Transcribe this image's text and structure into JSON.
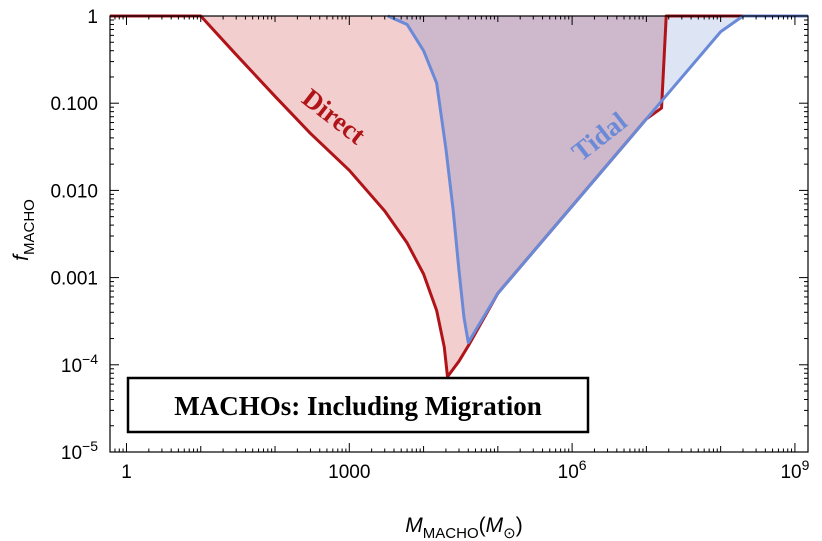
{
  "chart_data": {
    "type": "area",
    "title": "MACHOs: Including Migration",
    "xlabel": {
      "main": "M",
      "sub": "MACHO",
      "unit_open": "(",
      "unit_main": "M",
      "unit_sub": "⊙",
      "unit_close": ")"
    },
    "ylabel": {
      "main": "f",
      "sub": "MACHO"
    },
    "x_scale": "log",
    "y_scale": "log",
    "xlim": [
      0.6,
      1500000000.0
    ],
    "ylim": [
      1e-05,
      1
    ],
    "grid": false,
    "x_ticks": [
      {
        "value": 1,
        "label": "1"
      },
      {
        "value": 1000,
        "label": "1000"
      },
      {
        "value": 1000000,
        "label": "10",
        "sup": "6"
      },
      {
        "value": 1000000000,
        "label": "10",
        "sup": "9"
      }
    ],
    "y_ticks": [
      {
        "value": 1,
        "label": "1"
      },
      {
        "value": 0.1,
        "label": "0.100"
      },
      {
        "value": 0.01,
        "label": "0.010"
      },
      {
        "value": 0.001,
        "label": "0.001"
      },
      {
        "value": 0.0001,
        "label": "10",
        "sup": "−4"
      },
      {
        "value": 1e-05,
        "label": "10",
        "sup": "−5"
      }
    ],
    "series": [
      {
        "name": "Direct",
        "color": "#b01418",
        "fill": "#f2cece",
        "points": [
          [
            0.6,
            1
          ],
          [
            10,
            1
          ],
          [
            30,
            0.36
          ],
          [
            100,
            0.12
          ],
          [
            300,
            0.045
          ],
          [
            1000,
            0.017
          ],
          [
            3000,
            0.0058
          ],
          [
            6000,
            0.0025
          ],
          [
            10000,
            0.0011
          ],
          [
            15000,
            0.00042
          ],
          [
            19000,
            0.00016
          ],
          [
            21000,
            7.3e-05
          ],
          [
            30000,
            0.00011
          ],
          [
            40000,
            0.000165
          ],
          [
            100000,
            0.00066
          ],
          [
            1000000,
            0.0066
          ],
          [
            10000000,
            0.066
          ],
          [
            16000000,
            0.088
          ],
          [
            18500000,
            1
          ],
          [
            1500000000.0,
            1
          ]
        ]
      },
      {
        "name": "Tidal",
        "color": "#6a8ad8",
        "fill": "#dde5f5",
        "points": [
          [
            3300,
            1
          ],
          [
            3300,
            1
          ],
          [
            6000,
            0.8
          ],
          [
            10000,
            0.4
          ],
          [
            15000,
            0.17
          ],
          [
            20000,
            0.03
          ],
          [
            25000,
            0.006
          ],
          [
            30000,
            0.0012
          ],
          [
            35000,
            0.00035
          ],
          [
            40000,
            0.00018
          ],
          [
            100000,
            0.00066
          ],
          [
            1000000,
            0.0066
          ],
          [
            10000000,
            0.066
          ],
          [
            100000000,
            0.66
          ],
          [
            200000000,
            1
          ],
          [
            1500000000.0,
            1
          ]
        ]
      }
    ],
    "annotations": [
      {
        "text": "Direct",
        "color": "#b01418"
      },
      {
        "text": "Tidal",
        "color": "#6a8ad8"
      }
    ],
    "overlap_fill": "#cdb8cc",
    "frame_color": "#000000"
  }
}
